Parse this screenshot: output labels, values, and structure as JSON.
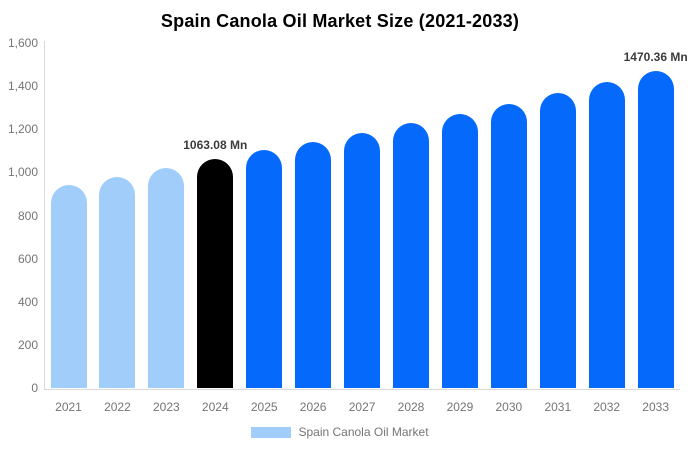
{
  "title": "Spain Canola Oil Market Size (2021-2033)",
  "legend": {
    "label": "Spain Canola Oil Market",
    "swatch_color": "#a0cdfa"
  },
  "colors": {
    "historical_bar": "#a0cdfa",
    "base_year_bar": "#000000",
    "forecast_bar": "#0569fb",
    "axis_line": "#d9d9d9",
    "tick_text": "#757575",
    "data_label_text": "#3c3c3c",
    "title_text": "#000000"
  },
  "y_axis": {
    "tick_labels": [
      "1,600",
      "1,400",
      "1,200",
      "1,000",
      "800",
      "600",
      "400",
      "200",
      "0"
    ],
    "min": 0,
    "max": 1600
  },
  "chart_data": {
    "type": "bar",
    "title": "Spain Canola Oil Market Size (2021-2033)",
    "unit": "Mn",
    "categories": [
      "2021",
      "2022",
      "2023",
      "2024",
      "2025",
      "2026",
      "2027",
      "2028",
      "2029",
      "2030",
      "2031",
      "2032",
      "2033"
    ],
    "values": [
      943,
      980,
      1021,
      1063.08,
      1102,
      1142,
      1184,
      1228,
      1273,
      1319,
      1368,
      1418,
      1470.36
    ],
    "bar_colors": [
      "#a0cdfa",
      "#a0cdfa",
      "#a0cdfa",
      "#000000",
      "#0569fb",
      "#0569fb",
      "#0569fb",
      "#0569fb",
      "#0569fb",
      "#0569fb",
      "#0569fb",
      "#0569fb",
      "#0569fb"
    ],
    "point_labels": [
      null,
      null,
      null,
      "1063.08 Mn",
      null,
      null,
      null,
      null,
      null,
      null,
      null,
      null,
      "1470.36 Mn"
    ],
    "xlabel": "",
    "ylabel": "",
    "ylim": [
      0,
      1600
    ],
    "grid": false,
    "legend_position": "bottom",
    "legend_entries": [
      "Spain Canola Oil Market"
    ]
  }
}
